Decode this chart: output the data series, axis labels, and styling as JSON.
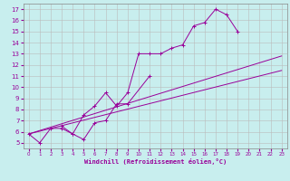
{
  "xlabel": "Windchill (Refroidissement éolien,°C)",
  "bg_color": "#c8eeee",
  "line_color": "#990099",
  "grid_color": "#bbbbbb",
  "xmin": 0,
  "xmax": 23,
  "ymin": 5,
  "ymax": 17,
  "xticks": [
    0,
    1,
    2,
    3,
    4,
    5,
    6,
    7,
    8,
    9,
    10,
    11,
    12,
    13,
    14,
    15,
    16,
    17,
    18,
    19,
    20,
    21,
    22,
    23
  ],
  "yticks": [
    5,
    6,
    7,
    8,
    9,
    10,
    11,
    12,
    13,
    14,
    15,
    16,
    17
  ],
  "s1x": [
    0,
    1,
    2,
    3,
    4,
    5,
    6,
    7,
    8,
    9,
    10,
    11,
    12,
    13,
    14,
    15,
    16,
    17,
    18,
    19
  ],
  "s1y": [
    5.8,
    5.0,
    6.3,
    6.3,
    5.8,
    7.5,
    8.3,
    9.5,
    8.3,
    9.5,
    13.0,
    13.0,
    13.0,
    13.5,
    13.8,
    15.5,
    15.8,
    17.0,
    16.5,
    15.0
  ],
  "s2x": [
    3,
    4,
    5,
    6,
    7,
    8,
    9,
    11
  ],
  "s2y": [
    6.5,
    5.8,
    5.3,
    6.8,
    7.0,
    8.5,
    8.5,
    11.0
  ],
  "s3x": [
    0,
    23
  ],
  "s3y": [
    5.8,
    11.5
  ],
  "s4x": [
    0,
    23
  ],
  "s4y": [
    5.8,
    12.8
  ],
  "xlabel_fontsize": 5,
  "tick_fontsize_x": 4,
  "tick_fontsize_y": 5
}
